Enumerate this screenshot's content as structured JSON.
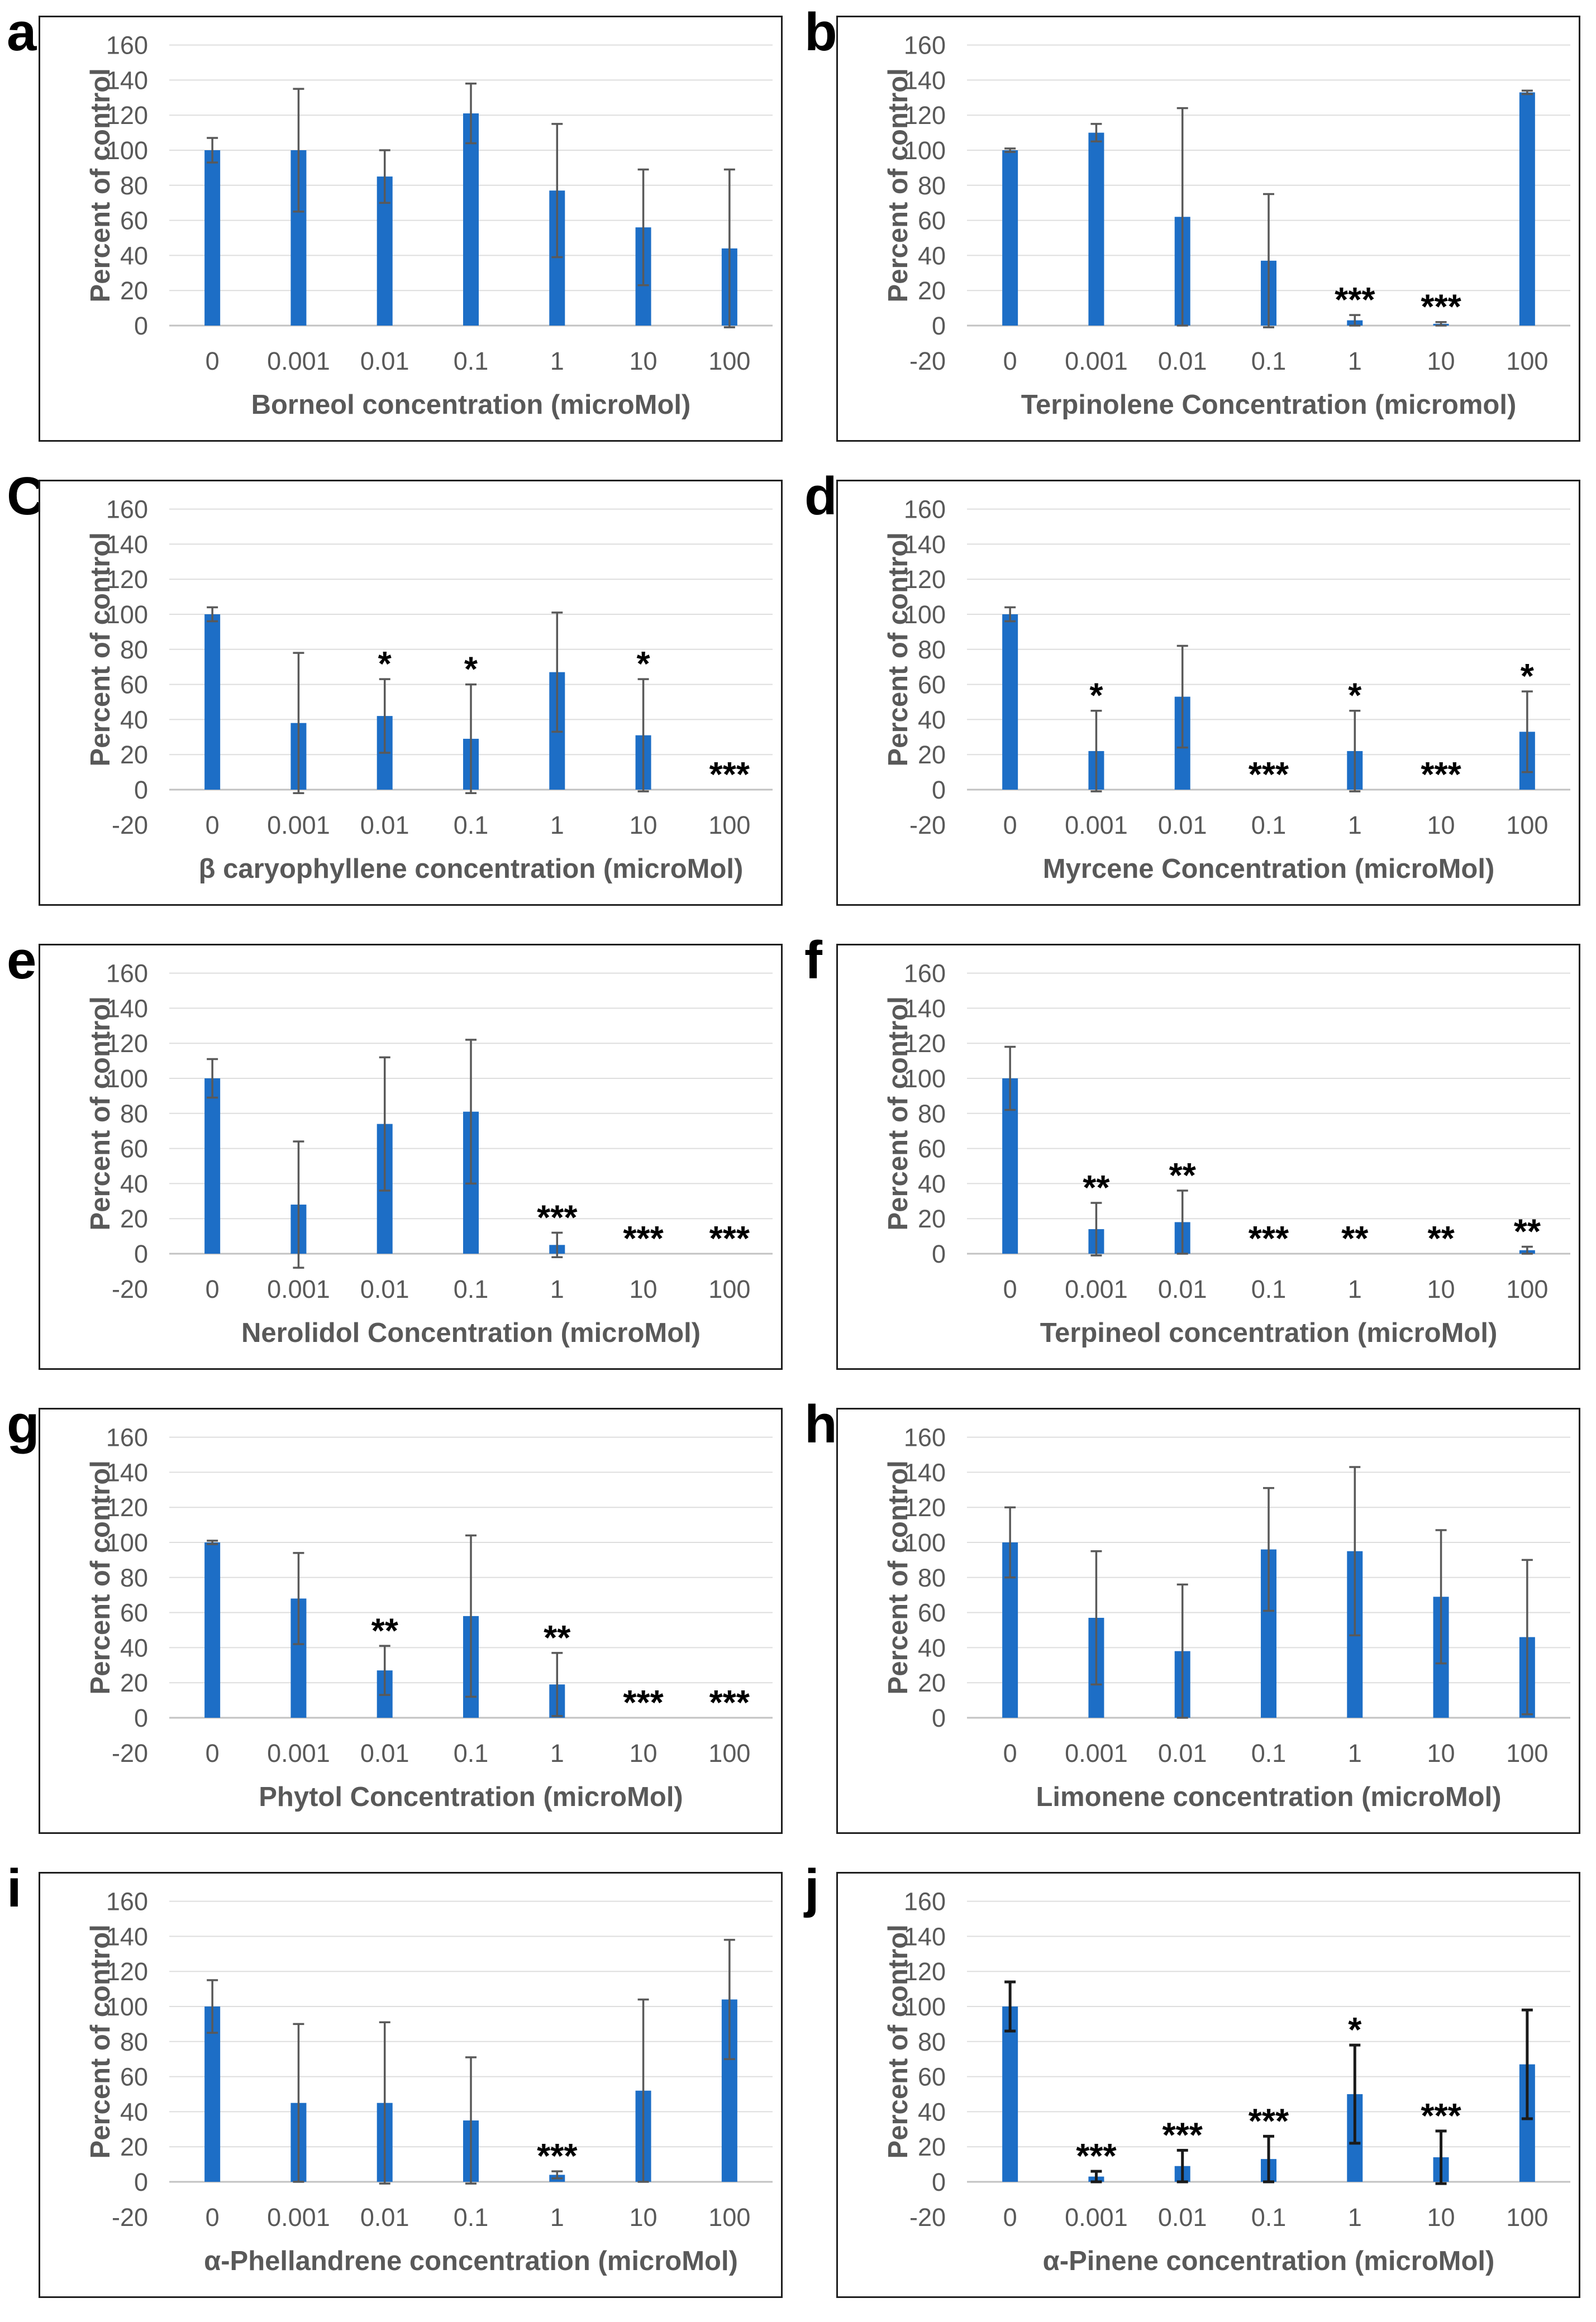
{
  "colors": {
    "bar": "#1d6ec6",
    "error": "#595959",
    "grid": "#dedede",
    "zero_axis": "#c2c2c2",
    "tick_label": "#595959",
    "axis_title": "#595959",
    "panel_letter": "#000000",
    "significance": "#000000",
    "box_border": "#1f1f1f"
  },
  "chart_data": [
    {
      "panel_letter": "a",
      "type": "bar",
      "title": "",
      "xlabel": "Borneol concentration (microMol)",
      "ylabel": "Percent of control",
      "categories": [
        "0",
        "0.001",
        "0.01",
        "0.1",
        "1",
        "10",
        "100"
      ],
      "values": [
        100,
        100,
        85,
        121,
        77,
        56,
        44
      ],
      "errors": [
        7,
        35,
        15,
        17,
        38,
        33,
        45
      ],
      "significance": [
        "",
        "",
        "",
        "",
        "",
        "",
        ""
      ],
      "ylim": [
        0,
        160
      ],
      "ytick_step": 20,
      "grid": true,
      "legend": "none"
    },
    {
      "panel_letter": "b",
      "type": "bar",
      "title": "",
      "xlabel": "Terpinolene Concentration (micromol)",
      "ylabel": "Percent of control",
      "categories": [
        "0",
        "0.001",
        "0.01",
        "0.1",
        "1",
        "10",
        "100"
      ],
      "values": [
        100,
        110,
        62,
        37,
        3,
        1,
        133
      ],
      "errors": [
        1,
        5,
        62,
        38,
        3,
        1,
        1
      ],
      "significance": [
        "",
        "",
        "",
        "",
        "***",
        "***",
        ""
      ],
      "ylim": [
        -20,
        160
      ],
      "ytick_step": 20,
      "grid": true,
      "legend": "none"
    },
    {
      "panel_letter": "C",
      "type": "bar",
      "title": "",
      "xlabel": "β caryophyllene concentration (microMol)",
      "ylabel": "Percent of control",
      "categories": [
        "0",
        "0.001",
        "0.01",
        "0.1",
        "1",
        "10",
        "100"
      ],
      "values": [
        100,
        38,
        42,
        29,
        67,
        31,
        0
      ],
      "errors": [
        4,
        40,
        21,
        31,
        34,
        32,
        0
      ],
      "significance": [
        "",
        "",
        "*",
        "*",
        "",
        "*",
        "***"
      ],
      "ylim": [
        -20,
        160
      ],
      "ytick_step": 20,
      "grid": true,
      "legend": "none"
    },
    {
      "panel_letter": "d",
      "type": "bar",
      "title": "",
      "xlabel": "Myrcene Concentration (microMol)",
      "ylabel": "Percent of control",
      "categories": [
        "0",
        "0.001",
        "0.01",
        "0.1",
        "1",
        "10",
        "100"
      ],
      "values": [
        100,
        22,
        53,
        0,
        22,
        0,
        33
      ],
      "errors": [
        4,
        23,
        29,
        0,
        23,
        0,
        23
      ],
      "significance": [
        "",
        "*",
        "",
        "***",
        "*",
        "***",
        "*"
      ],
      "ylim": [
        -20,
        160
      ],
      "ytick_step": 20,
      "grid": true,
      "legend": "none"
    },
    {
      "panel_letter": "e",
      "type": "bar",
      "title": "",
      "xlabel": "Nerolidol Concentration (microMol)",
      "ylabel": "Percent of control",
      "categories": [
        "0",
        "0.001",
        "0.01",
        "0.1",
        "1",
        "10",
        "100"
      ],
      "values": [
        100,
        28,
        74,
        81,
        5,
        0,
        0
      ],
      "errors": [
        11,
        36,
        38,
        41,
        7,
        0,
        0
      ],
      "significance": [
        "",
        "",
        "",
        "",
        "***",
        "***",
        "***"
      ],
      "ylim": [
        -20,
        160
      ],
      "ytick_step": 20,
      "grid": true,
      "legend": "none"
    },
    {
      "panel_letter": "f",
      "type": "bar",
      "title": "",
      "xlabel": "Terpineol concentration (microMol)",
      "ylabel": "Percent of control",
      "categories": [
        "0",
        "0.001",
        "0.01",
        "0.1",
        "1",
        "10",
        "100"
      ],
      "values": [
        100,
        14,
        18,
        0,
        0,
        0,
        2
      ],
      "errors": [
        18,
        15,
        18,
        0,
        0,
        0,
        2
      ],
      "significance": [
        "",
        "**",
        "**",
        "***",
        "**",
        "**",
        "**"
      ],
      "ylim": [
        0,
        160
      ],
      "ytick_step": 20,
      "grid": true,
      "legend": "none"
    },
    {
      "panel_letter": "g",
      "type": "bar",
      "title": "",
      "xlabel": "Phytol Concentration (microMol)",
      "ylabel": "Percent of control",
      "categories": [
        "0",
        "0.001",
        "0.01",
        "0.1",
        "1",
        "10",
        "100"
      ],
      "values": [
        100,
        68,
        27,
        58,
        19,
        0,
        0
      ],
      "errors": [
        1,
        26,
        14,
        46,
        18,
        0,
        0
      ],
      "significance": [
        "",
        "",
        "**",
        "",
        "**",
        "***",
        "***"
      ],
      "ylim": [
        -20,
        160
      ],
      "ytick_step": 20,
      "grid": true,
      "legend": "none"
    },
    {
      "panel_letter": "h",
      "type": "bar",
      "title": "",
      "xlabel": "Limonene concentration (microMol)",
      "ylabel": "Percent of control",
      "categories": [
        "0",
        "0.001",
        "0.01",
        "0.1",
        "1",
        "10",
        "100"
      ],
      "values": [
        100,
        57,
        38,
        96,
        95,
        69,
        46
      ],
      "errors": [
        20,
        38,
        38,
        35,
        48,
        38,
        44
      ],
      "significance": [
        "",
        "",
        "",
        "",
        "",
        "",
        ""
      ],
      "ylim": [
        0,
        160
      ],
      "ytick_step": 20,
      "grid": true,
      "legend": "none"
    },
    {
      "panel_letter": "i",
      "type": "bar",
      "title": "",
      "xlabel": "α-Phellandrene concentration (microMol)",
      "ylabel": "Percent of control",
      "categories": [
        "0",
        "0.001",
        "0.01",
        "0.1",
        "1",
        "10",
        "100"
      ],
      "values": [
        100,
        45,
        45,
        35,
        4,
        52,
        104
      ],
      "errors": [
        15,
        45,
        46,
        36,
        2,
        52,
        34
      ],
      "significance": [
        "",
        "",
        "",
        "",
        "***",
        "",
        ""
      ],
      "ylim": [
        -20,
        160
      ],
      "ytick_step": 20,
      "grid": true,
      "legend": "none"
    },
    {
      "panel_letter": "j",
      "type": "bar",
      "title": "",
      "xlabel": "α-Pinene concentration (microMol)",
      "ylabel": "Percent of control",
      "categories": [
        "0",
        "0.001",
        "0.01",
        "0.1",
        "1",
        "10",
        "100"
      ],
      "values": [
        100,
        3,
        9,
        13,
        50,
        14,
        67
      ],
      "errors": [
        14,
        3,
        9,
        13,
        28,
        15,
        31
      ],
      "significance": [
        "",
        "***",
        "***",
        "***",
        "*",
        "***",
        ""
      ],
      "ylim": [
        -20,
        160
      ],
      "ytick_step": 20,
      "grid": true,
      "legend": "none",
      "error_color": "#1a1a1a",
      "error_width": 5
    }
  ]
}
